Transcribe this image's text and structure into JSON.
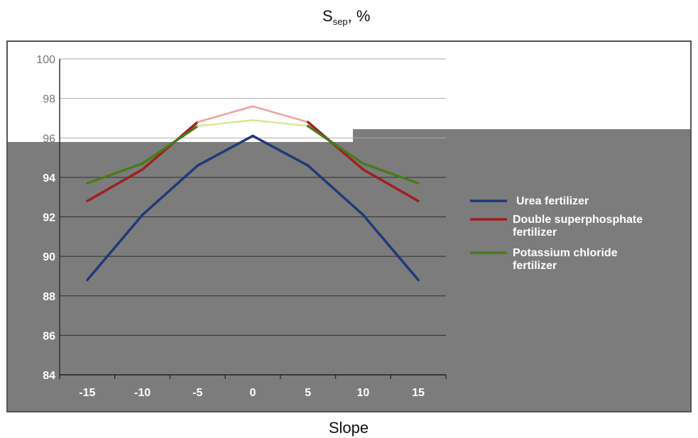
{
  "chart_data": {
    "type": "line",
    "ylabel": "S",
    "ylabel_sub": "sep",
    "ylabel_unit": ", %",
    "xlabel": "Slope",
    "x": [
      -15,
      -10,
      -5,
      0,
      5,
      10,
      15
    ],
    "x_tick_labels": [
      "-15",
      "-10",
      "-5",
      "0",
      "5",
      "10",
      "15"
    ],
    "ylim": [
      84,
      100
    ],
    "y_ticks": [
      84,
      86,
      88,
      90,
      92,
      94,
      96,
      98,
      100
    ],
    "y_tick_labels": [
      "84",
      "86",
      "88",
      "90",
      "92",
      "94",
      "96",
      "98",
      "100"
    ],
    "grid": "horizontal",
    "legend_position": "right",
    "series": [
      {
        "name": "Urea fertilizer",
        "color": "#1f3a78",
        "highlight": "#a8d0f0",
        "values": [
          88.8,
          92.1,
          94.6,
          96.1,
          94.6,
          92.1,
          88.8
        ]
      },
      {
        "name": "Double superphosphate fertilizer",
        "color": "#a02020",
        "highlight": "#f0a0a0",
        "values": [
          92.8,
          94.4,
          96.8,
          97.6,
          96.8,
          94.4,
          92.8
        ]
      },
      {
        "name": "Potassium chloride fertilizer",
        "color": "#4a7a1a",
        "highlight": "#d8e890",
        "values": [
          93.7,
          94.7,
          96.6,
          96.9,
          96.6,
          94.7,
          93.7
        ]
      }
    ],
    "legend_lines": [
      [
        "Urea fertilizer"
      ],
      [
        "Double superphosphate",
        "fertilizer"
      ],
      [
        "Potassium chloride",
        "fertilizer"
      ]
    ],
    "colors": {
      "panel_dark": "#7c7c7c",
      "grid": "#2e2e2e",
      "grid_light": "#aaaaaa"
    }
  }
}
